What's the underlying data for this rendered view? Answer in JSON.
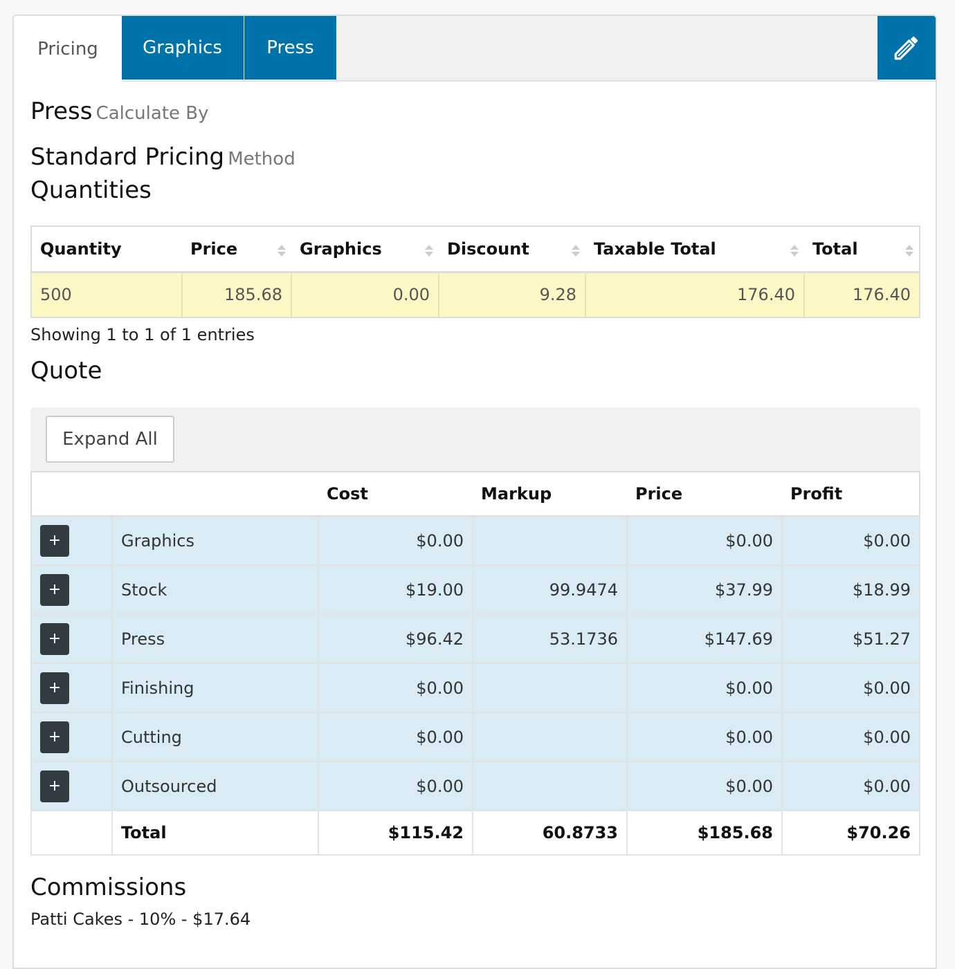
{
  "tabs": [
    {
      "label": "Pricing"
    },
    {
      "label": "Graphics"
    },
    {
      "label": "Press"
    }
  ],
  "edit_icon": "pencil-icon",
  "section": {
    "title": "Press",
    "title_sub": "Calculate By",
    "method": "Standard Pricing",
    "method_sub": "Method",
    "quantities_heading": "Quantities"
  },
  "quantities_table": {
    "headers": [
      "Quantity",
      "Price",
      "Graphics",
      "Discount",
      "Taxable Total",
      "Total"
    ],
    "rows": [
      [
        "500",
        "185.68",
        "0.00",
        "9.28",
        "176.40",
        "176.40"
      ]
    ],
    "showing": "Showing 1 to 1 of 1 entries"
  },
  "quote": {
    "heading": "Quote",
    "expand_label": "Expand All",
    "headers": [
      "",
      "",
      "Cost",
      "Markup",
      "Price",
      "Profit"
    ],
    "expander_label": "+",
    "rows": [
      {
        "name": "Graphics",
        "cost": "$0.00",
        "markup": "",
        "price": "$0.00",
        "profit": "$0.00"
      },
      {
        "name": "Stock",
        "cost": "$19.00",
        "markup": "99.9474",
        "price": "$37.99",
        "profit": "$18.99"
      },
      {
        "name": "Press",
        "cost": "$96.42",
        "markup": "53.1736",
        "price": "$147.69",
        "profit": "$51.27"
      },
      {
        "name": "Finishing",
        "cost": "$0.00",
        "markup": "",
        "price": "$0.00",
        "profit": "$0.00"
      },
      {
        "name": "Cutting",
        "cost": "$0.00",
        "markup": "",
        "price": "$0.00",
        "profit": "$0.00"
      },
      {
        "name": "Outsourced",
        "cost": "$0.00",
        "markup": "",
        "price": "$0.00",
        "profit": "$0.00"
      }
    ],
    "total": {
      "name": "Total",
      "cost": "$115.42",
      "markup": "60.8733",
      "price": "$185.68",
      "profit": "$70.26"
    }
  },
  "commissions": {
    "heading": "Commissions",
    "line": "Patti Cakes - 10% - $17.64"
  }
}
